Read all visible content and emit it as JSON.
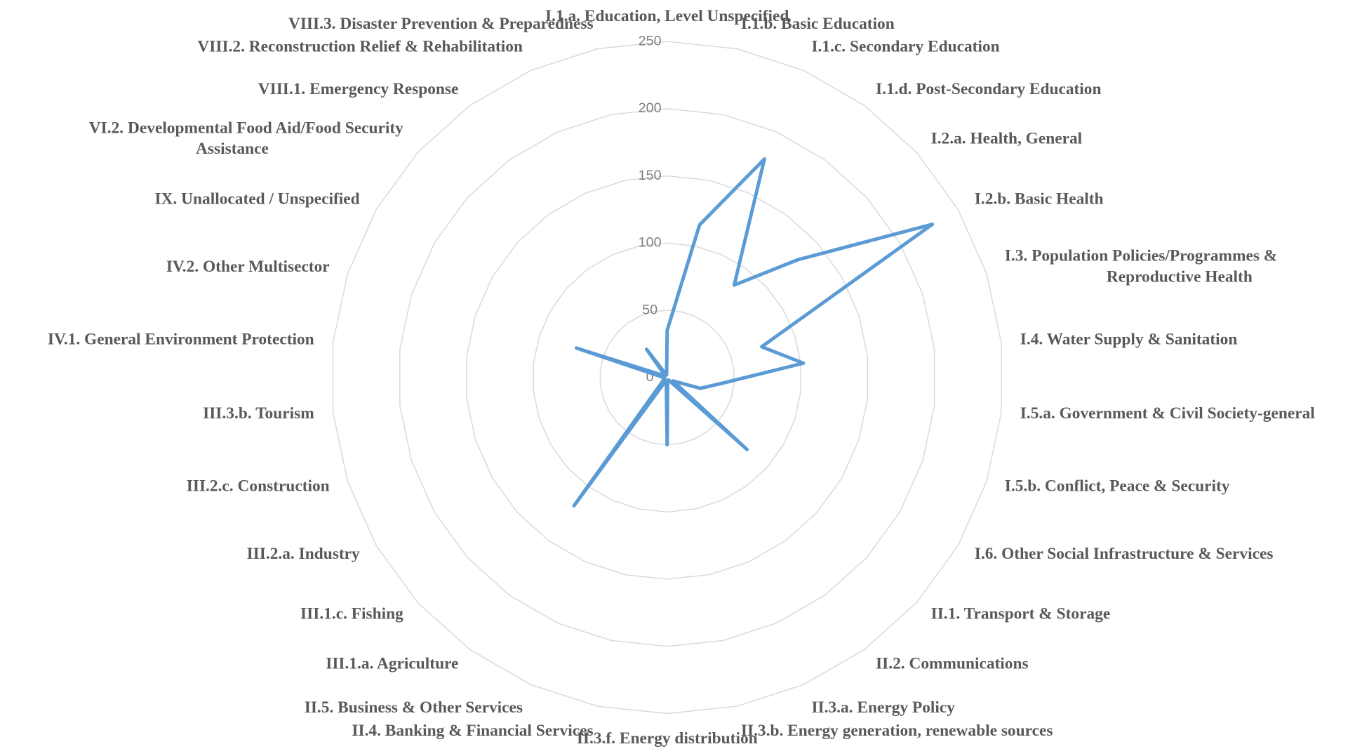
{
  "chart_data": {
    "type": "radar",
    "categories": [
      "I.1.a. Education, Level Unspecified",
      "I.1.b. Basic Education",
      "I.1.c. Secondary Education",
      "I.1.d. Post-Secondary Education",
      "I.2.a. Health, General",
      "I.2.b. Basic Health",
      "I.3. Population Policies/Programmes & Reproductive Health",
      "I.4. Water Supply & Sanitation",
      "I.5.a. Government & Civil Society-general",
      "I.5.b. Conflict, Peace & Security",
      "I.6. Other Social Infrastructure & Services",
      "II.1. Transport & Storage",
      "II.2. Communications",
      "II.3.a. Energy Policy",
      "II.3.b. Energy generation, renewable sources",
      "II.3.f. Energy distribution",
      "II.4. Banking & Financial Services",
      "II.5. Business & Other Services",
      "III.1.a. Agriculture",
      "III.1.c. Fishing",
      "III.2.a. Industry",
      "III.2.c. Construction",
      "III.3.b. Tourism",
      "IV.1. General Environment Protection",
      "IV.2. Other Multisector",
      "IX. Unallocated / Unspecified",
      "VI.2. Developmental Food Aid/Food Security Assistance",
      "VIII.1. Emergency Response",
      "VIII.2. Reconstruction Relief & Rehabilitation",
      "VIII.3. Disaster Prevention & Preparedness"
    ],
    "values": [
      35,
      116,
      178,
      85,
      131,
      228,
      74,
      102,
      41,
      26,
      5,
      80,
      3,
      2,
      2,
      50,
      3,
      3,
      118,
      5,
      3,
      2,
      2,
      4,
      71,
      3,
      2,
      26,
      3,
      2
    ],
    "color": "#5b9bd5",
    "ylim": [
      0,
      250
    ],
    "yticks": [
      0,
      50,
      100,
      150,
      200,
      250
    ],
    "grid": true
  }
}
